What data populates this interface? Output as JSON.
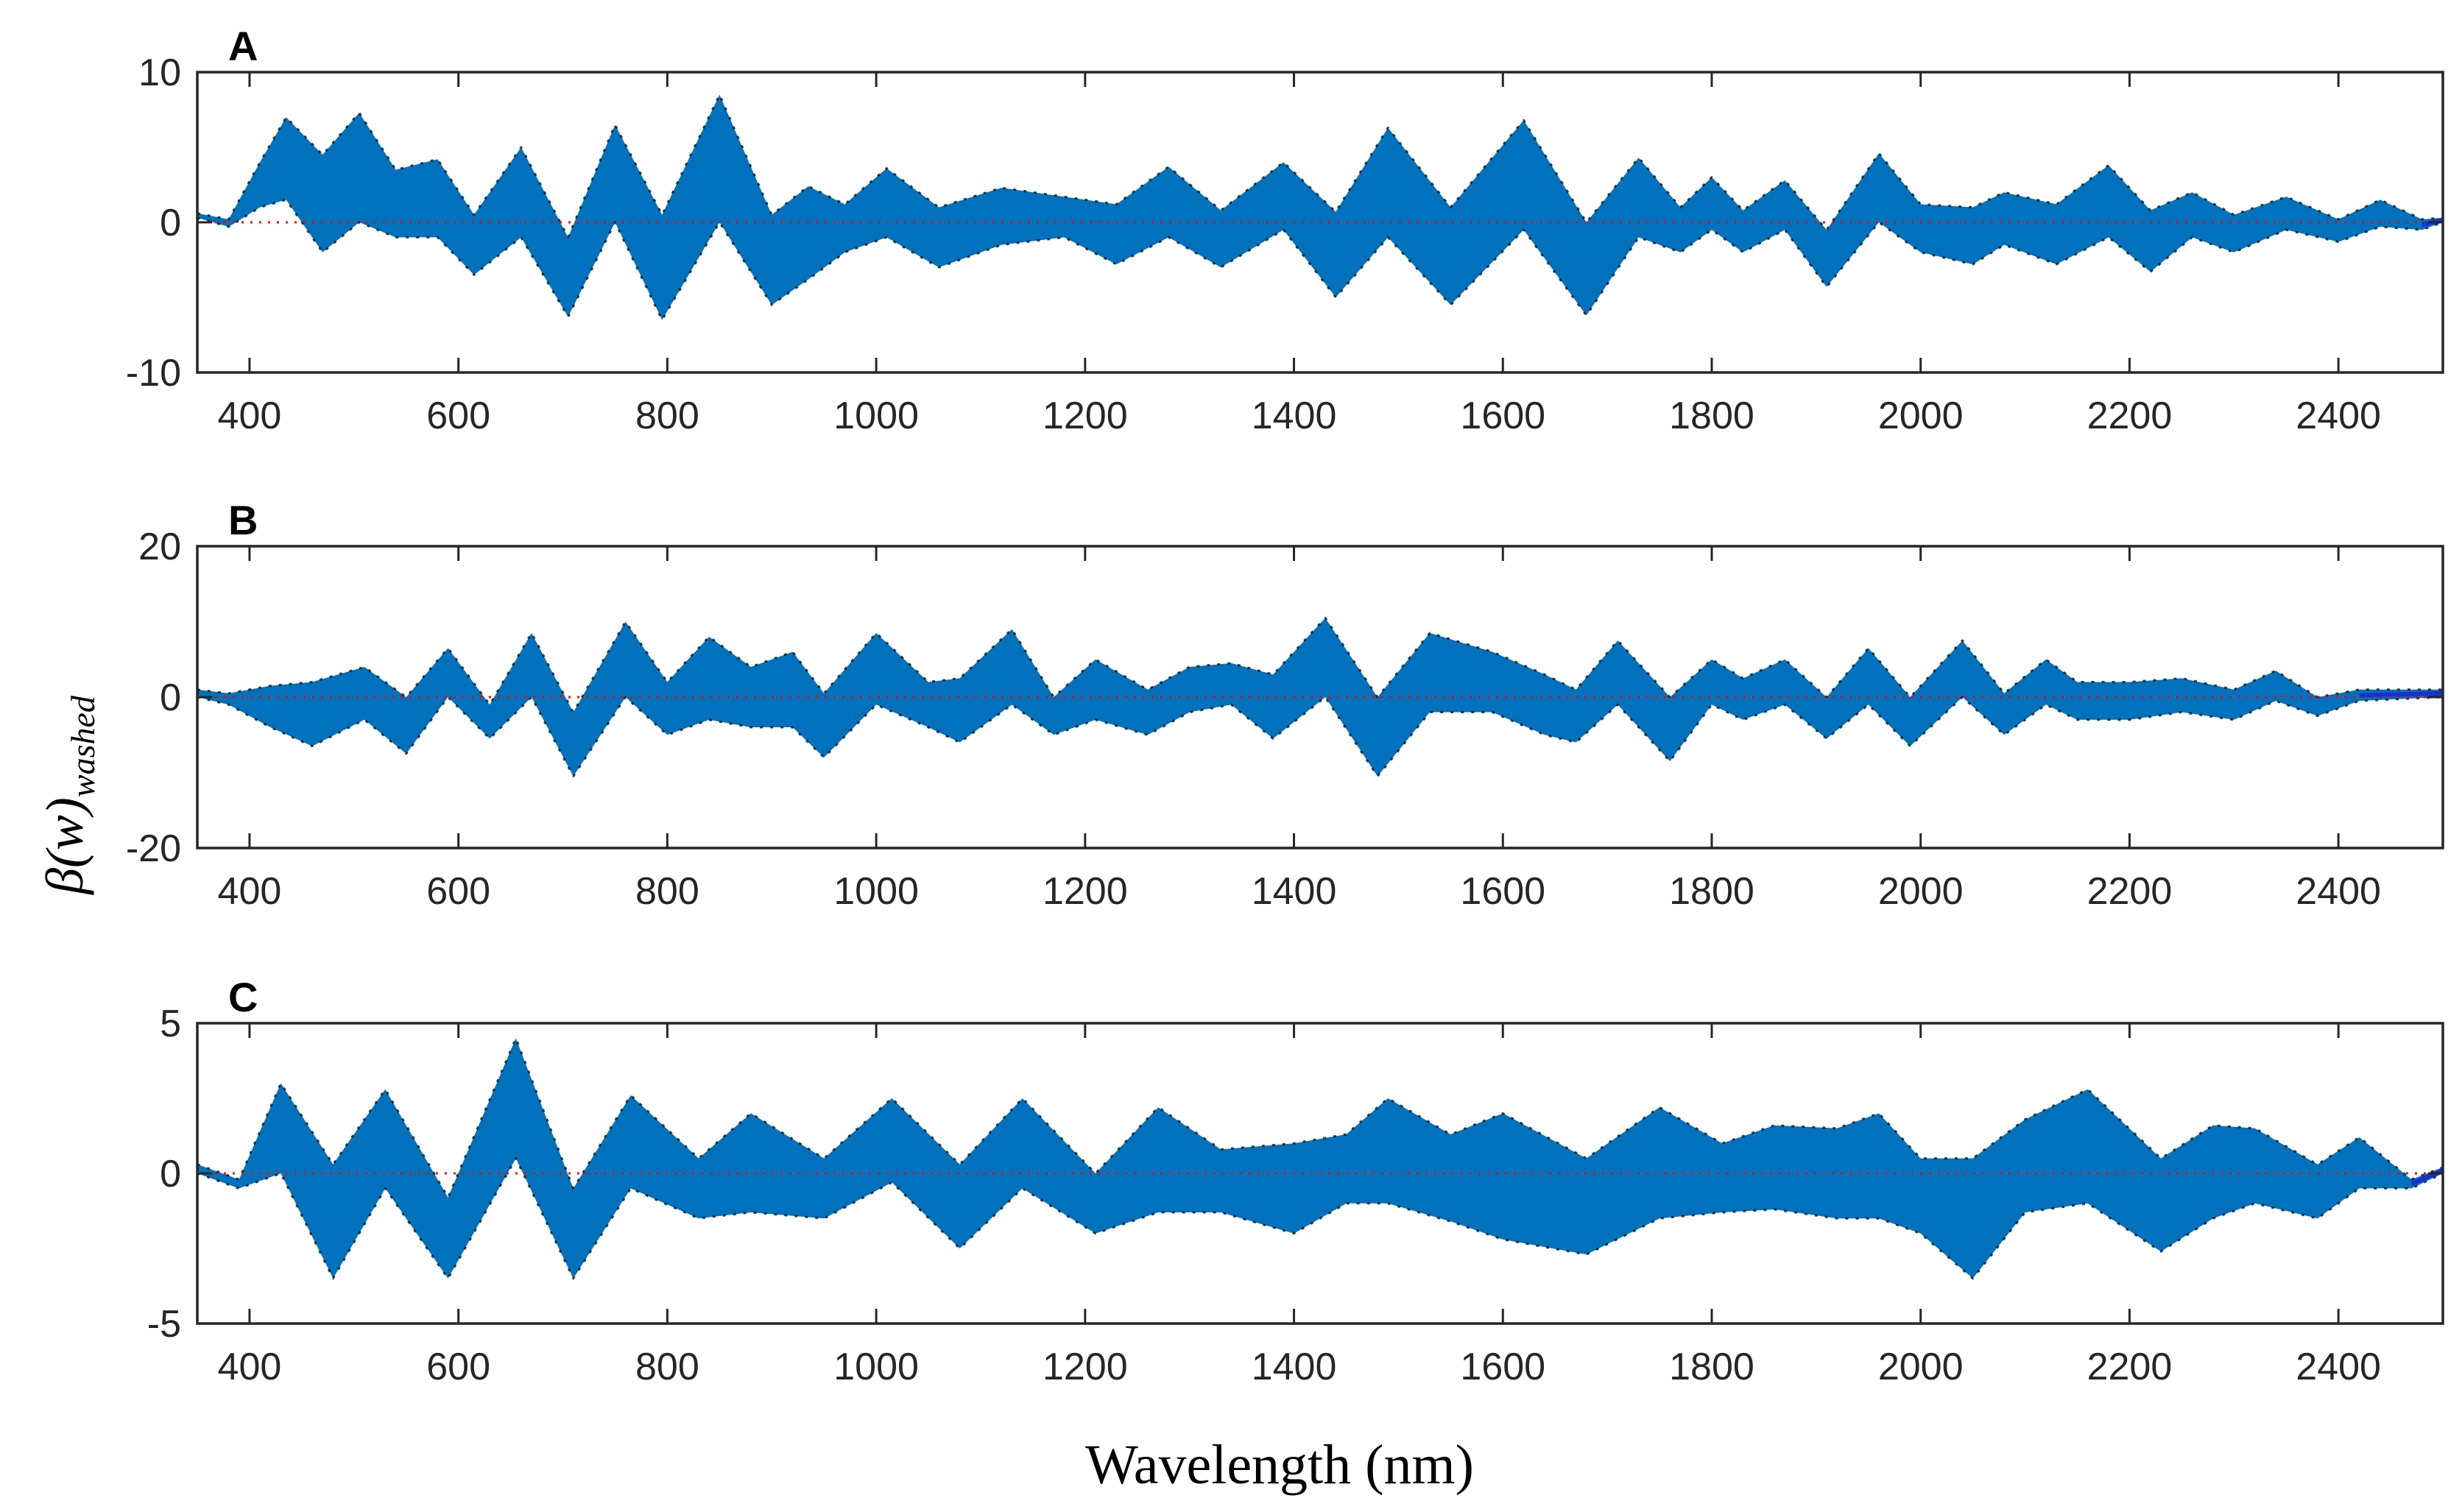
{
  "figure": {
    "xlabel": "Wavelength (nm)",
    "ylabel_main": "β(w)",
    "ylabel_sub": "washed"
  },
  "colors": {
    "band": "#0072BD",
    "band_edge": "#111111",
    "zero_line": "#FF0000",
    "axes": "#262626",
    "line_end": "#1a2fd6"
  },
  "chart_data": [
    {
      "type": "area",
      "panel": "A",
      "title": "A",
      "xlabel": "",
      "ylabel": "",
      "xlim": [
        350,
        2500
      ],
      "ylim": [
        -10,
        10
      ],
      "xticks": [
        400,
        600,
        800,
        1000,
        1200,
        1400,
        1600,
        1800,
        2000,
        2200,
        2400
      ],
      "yticks": [
        -10,
        0,
        10
      ],
      "reference_line": 0,
      "x": [
        350,
        380,
        410,
        435,
        470,
        505,
        540,
        580,
        615,
        660,
        705,
        750,
        795,
        850,
        900,
        935,
        970,
        1010,
        1060,
        1120,
        1180,
        1230,
        1280,
        1330,
        1390,
        1440,
        1490,
        1550,
        1620,
        1680,
        1730,
        1770,
        1800,
        1830,
        1870,
        1910,
        1960,
        2000,
        2050,
        2080,
        2130,
        2180,
        2220,
        2260,
        2300,
        2350,
        2400,
        2440,
        2480,
        2500
      ],
      "upper": [
        0.6,
        0.2,
        4.0,
        7.0,
        4.5,
        7.3,
        3.5,
        4.2,
        0.5,
        5.0,
        -1.0,
        6.5,
        0.5,
        8.5,
        0.5,
        2.4,
        1.2,
        3.6,
        1.0,
        2.3,
        1.7,
        1.2,
        3.7,
        0.8,
        4.0,
        0.7,
        6.3,
        1.0,
        6.8,
        0.0,
        4.3,
        1.0,
        3.0,
        0.8,
        2.8,
        -0.5,
        4.6,
        1.2,
        1.0,
        2.0,
        1.2,
        3.8,
        0.8,
        2.0,
        0.5,
        1.7,
        0.2,
        1.5,
        0.2,
        0.3
      ],
      "lower": [
        0.3,
        -0.3,
        1.0,
        1.5,
        -2.0,
        0.0,
        -1.0,
        -1.0,
        -3.5,
        -1.0,
        -6.3,
        0.0,
        -6.5,
        0.0,
        -5.5,
        -3.8,
        -2.0,
        -1.0,
        -3.0,
        -1.5,
        -1.0,
        -2.8,
        -1.0,
        -3.0,
        -0.5,
        -5.0,
        -1.0,
        -5.5,
        -0.5,
        -6.2,
        -1.0,
        -2.0,
        -0.5,
        -2.0,
        -0.5,
        -4.3,
        0.0,
        -2.0,
        -2.8,
        -1.5,
        -2.8,
        -1.0,
        -3.3,
        -1.0,
        -2.0,
        -0.5,
        -1.3,
        -0.3,
        -0.5,
        0.0
      ]
    },
    {
      "type": "area",
      "panel": "B",
      "title": "B",
      "xlabel": "",
      "ylabel": "β(w) washed",
      "xlim": [
        350,
        2500
      ],
      "ylim": [
        -20,
        20
      ],
      "xticks": [
        400,
        600,
        800,
        1000,
        1200,
        1400,
        1600,
        1800,
        2000,
        2200,
        2400
      ],
      "yticks": [
        -20,
        0,
        20
      ],
      "reference_line": 0,
      "x": [
        350,
        380,
        420,
        460,
        510,
        550,
        590,
        630,
        670,
        710,
        760,
        800,
        840,
        880,
        920,
        950,
        1000,
        1050,
        1080,
        1130,
        1170,
        1210,
        1260,
        1300,
        1340,
        1380,
        1430,
        1480,
        1530,
        1590,
        1640,
        1670,
        1710,
        1760,
        1800,
        1830,
        1870,
        1910,
        1950,
        1990,
        2040,
        2080,
        2120,
        2150,
        2200,
        2250,
        2300,
        2340,
        2380,
        2420,
        2500
      ],
      "upper": [
        1.0,
        0.5,
        1.5,
        2.0,
        4.0,
        0.0,
        6.5,
        -1.0,
        8.5,
        -2.0,
        10.0,
        2.0,
        8.0,
        4.0,
        6.0,
        0.5,
        8.5,
        2.0,
        2.5,
        9.0,
        0.0,
        5.0,
        1.0,
        4.0,
        4.5,
        3.0,
        10.5,
        0.0,
        8.5,
        6.0,
        3.0,
        1.0,
        7.5,
        0.0,
        5.0,
        2.5,
        5.0,
        0.0,
        6.5,
        0.0,
        7.5,
        0.5,
        5.0,
        2.0,
        2.0,
        2.5,
        1.0,
        3.5,
        0.0,
        1.0,
        1.0
      ],
      "lower": [
        0.0,
        -1.0,
        -4.0,
        -6.5,
        -3.0,
        -7.5,
        0.0,
        -5.5,
        0.0,
        -10.5,
        0.0,
        -5.0,
        -3.0,
        -4.0,
        -4.0,
        -8.0,
        -1.0,
        -4.0,
        -6.0,
        -1.0,
        -5.0,
        -3.0,
        -5.0,
        -2.0,
        -1.0,
        -5.5,
        0.0,
        -10.5,
        -2.0,
        -2.0,
        -5.0,
        -6.0,
        -1.0,
        -8.5,
        -1.0,
        -3.0,
        -1.0,
        -5.5,
        -1.0,
        -6.5,
        0.0,
        -5.0,
        -1.0,
        -3.0,
        -3.0,
        -2.0,
        -3.0,
        -0.5,
        -2.5,
        -0.5,
        0.0
      ]
    },
    {
      "type": "area",
      "panel": "C",
      "title": "C",
      "xlabel": "Wavelength (nm)",
      "ylabel": "",
      "xlim": [
        350,
        2500
      ],
      "ylim": [
        -5,
        5
      ],
      "xticks": [
        400,
        600,
        800,
        1000,
        1200,
        1400,
        1600,
        1800,
        2000,
        2200,
        2400
      ],
      "yticks": [
        -5,
        0,
        5
      ],
      "reference_line": 0,
      "x": [
        350,
        390,
        430,
        480,
        530,
        590,
        655,
        710,
        765,
        830,
        880,
        950,
        1015,
        1080,
        1140,
        1210,
        1270,
        1330,
        1400,
        1450,
        1490,
        1550,
        1600,
        1680,
        1750,
        1810,
        1860,
        1920,
        1960,
        2000,
        2050,
        2100,
        2160,
        2230,
        2280,
        2320,
        2380,
        2420,
        2470,
        2500
      ],
      "upper": [
        0.3,
        -0.2,
        3.0,
        0.3,
        2.8,
        -0.8,
        4.5,
        -0.5,
        2.6,
        0.5,
        2.0,
        0.5,
        2.5,
        0.3,
        2.5,
        0.0,
        2.2,
        0.8,
        1.0,
        1.3,
        2.5,
        1.3,
        2.0,
        0.5,
        2.2,
        1.0,
        1.6,
        1.5,
        2.0,
        0.5,
        0.5,
        1.8,
        2.8,
        0.5,
        1.6,
        1.5,
        0.3,
        1.2,
        -0.2,
        0.2
      ],
      "lower": [
        0.0,
        -0.5,
        0.0,
        -3.5,
        -0.5,
        -3.5,
        0.5,
        -3.5,
        -0.5,
        -1.5,
        -1.3,
        -1.5,
        -0.3,
        -2.5,
        -0.5,
        -2.0,
        -1.3,
        -1.3,
        -2.0,
        -1.0,
        -1.0,
        -1.6,
        -2.2,
        -2.7,
        -1.5,
        -1.3,
        -1.2,
        -1.5,
        -1.5,
        -2.0,
        -3.5,
        -1.3,
        -1.0,
        -2.6,
        -1.5,
        -1.0,
        -1.5,
        -0.5,
        -0.5,
        0.0
      ]
    }
  ]
}
